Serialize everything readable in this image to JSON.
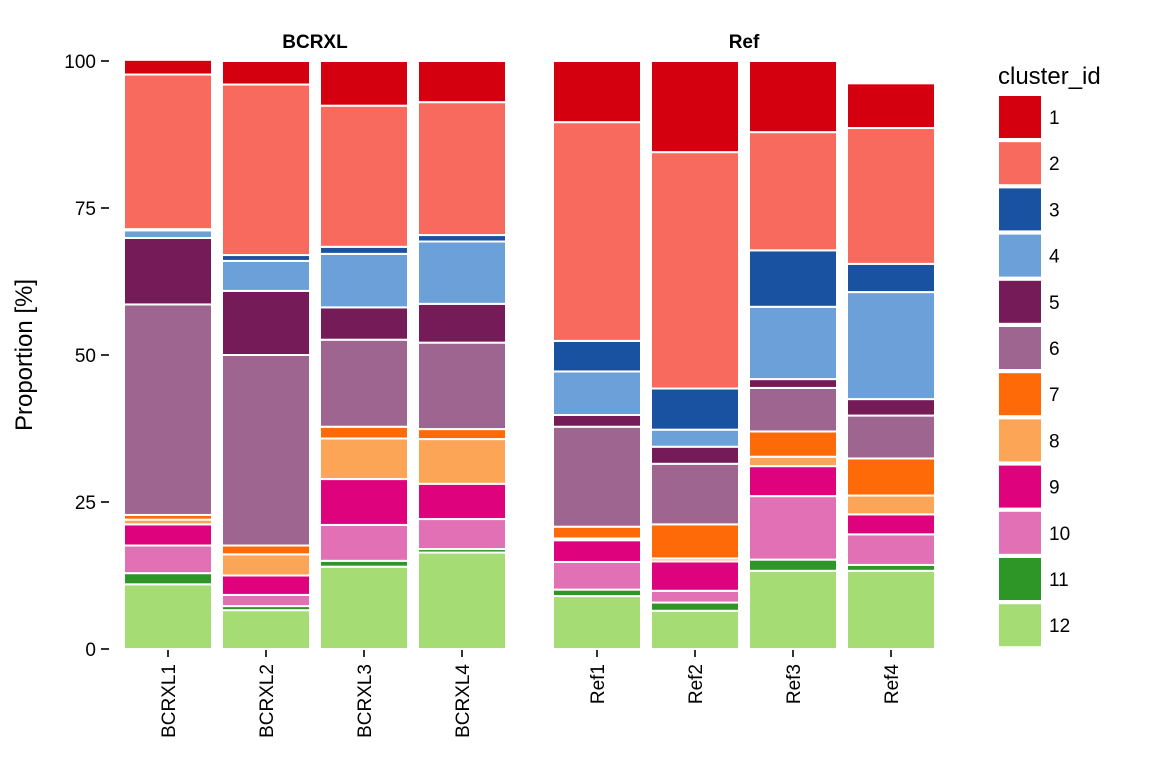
{
  "chart_data": {
    "type": "bar",
    "stacked": true,
    "ylabel": "Proportion [%]",
    "xlabel": "",
    "ylim": [
      0,
      100
    ],
    "yticks": [
      0,
      25,
      50,
      75,
      100
    ],
    "legend": {
      "title": "cluster_id",
      "placement": "right"
    },
    "clusters": [
      "1",
      "2",
      "3",
      "4",
      "5",
      "6",
      "7",
      "8",
      "9",
      "10",
      "11",
      "12"
    ],
    "colors": {
      "1": "#D40010",
      "2": "#F8695E",
      "3": "#1A52A2",
      "4": "#6BA1D8",
      "5": "#741B58",
      "6": "#9E6590",
      "7": "#FF6A08",
      "8": "#FCA556",
      "9": "#DE037C",
      "10": "#E170B4",
      "11": "#2E9527",
      "12": "#A6DC74"
    },
    "panels": [
      {
        "title": "BCRXL",
        "samples": [
          {
            "name": "BCRXL1",
            "values": {
              "12": 11.0,
              "11": 1.9,
              "10": 4.7,
              "9": 3.6,
              "8": 0.8,
              "7": 0.8,
              "6": 35.8,
              "5": 11.3,
              "4": 1.3,
              "3": 0.2,
              "2": 26.3,
              "1": 2.5
            }
          },
          {
            "name": "BCRXL2",
            "values": {
              "12": 6.6,
              "11": 0.7,
              "10": 1.9,
              "9": 3.3,
              "8": 3.6,
              "7": 1.5,
              "6": 32.4,
              "5": 10.9,
              "4": 5.1,
              "3": 1.0,
              "2": 29.0,
              "1": 4.0
            }
          },
          {
            "name": "BCRXL3",
            "values": {
              "12": 14.0,
              "11": 1.0,
              "10": 6.1,
              "9": 7.8,
              "8": 6.9,
              "7": 2.0,
              "6": 14.8,
              "5": 5.5,
              "4": 9.1,
              "3": 1.2,
              "2": 24.0,
              "1": 7.6
            }
          },
          {
            "name": "BCRXL4",
            "values": {
              "12": 16.4,
              "11": 0.6,
              "10": 5.1,
              "9": 6.0,
              "8": 7.6,
              "7": 1.7,
              "6": 14.7,
              "5": 6.6,
              "4": 10.6,
              "3": 1.1,
              "2": 22.6,
              "1": 7.0
            }
          }
        ]
      },
      {
        "title": "Ref",
        "samples": [
          {
            "name": "Ref1",
            "values": {
              "12": 9.0,
              "11": 1.1,
              "10": 4.7,
              "9": 3.7,
              "8": 0.3,
              "7": 2.0,
              "6": 17.0,
              "5": 2.0,
              "4": 7.4,
              "3": 5.2,
              "2": 37.2,
              "1": 10.4
            }
          },
          {
            "name": "Ref2",
            "values": {
              "12": 6.5,
              "11": 1.4,
              "10": 2.0,
              "9": 5.0,
              "8": 0.5,
              "7": 5.8,
              "6": 10.3,
              "5": 2.9,
              "4": 2.9,
              "3": 7.0,
              "2": 40.2,
              "1": 15.5
            }
          },
          {
            "name": "Ref3",
            "values": {
              "12": 13.3,
              "11": 1.9,
              "10": 10.8,
              "9": 5.1,
              "8": 1.6,
              "7": 4.3,
              "6": 7.4,
              "5": 1.5,
              "4": 12.3,
              "3": 9.6,
              "2": 20.1,
              "1": 12.1
            }
          },
          {
            "name": "Ref4",
            "values": {
              "12": 13.3,
              "11": 1.0,
              "10": 5.2,
              "9": 3.4,
              "8": 3.2,
              "7": 6.3,
              "6": 7.3,
              "5": 2.8,
              "4": 18.2,
              "3": 4.8,
              "2": 23.1,
              "1": 7.6
            }
          }
        ]
      }
    ]
  }
}
